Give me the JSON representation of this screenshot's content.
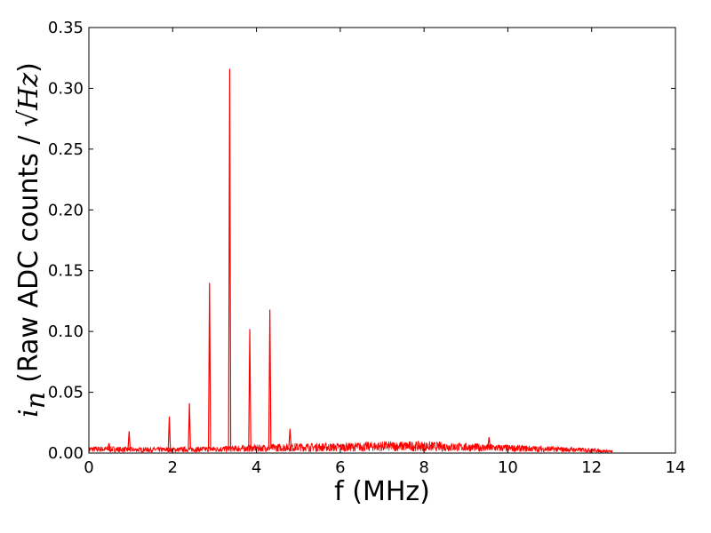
{
  "chart_data": {
    "type": "line",
    "title": "",
    "xlabel": "f (MHz)",
    "ylabel": {
      "symbol": "i",
      "subscript": "n",
      "text": "(Raw ADC counts / ",
      "sqrt_sign": "√",
      "unit": "Hz",
      "close": ")"
    },
    "xlim": [
      0,
      14
    ],
    "ylim": [
      0,
      0.35
    ],
    "xticks": [
      "0",
      "2",
      "4",
      "6",
      "8",
      "10",
      "12",
      "14"
    ],
    "yticks": [
      "0.00",
      "0.05",
      "0.10",
      "0.15",
      "0.20",
      "0.25",
      "0.30",
      "0.35"
    ],
    "grid": false,
    "series": [
      {
        "color": "#ff0000",
        "noise_floor": [
          [
            0,
            0.004
          ],
          [
            0.5,
            0.004
          ],
          [
            1.0,
            0.0035
          ],
          [
            2.0,
            0.0035
          ],
          [
            3.0,
            0.004
          ],
          [
            4.0,
            0.005
          ],
          [
            5.0,
            0.006
          ],
          [
            6.0,
            0.006
          ],
          [
            7.0,
            0.007
          ],
          [
            8.0,
            0.007
          ],
          [
            9.0,
            0.006
          ],
          [
            10.0,
            0.005
          ],
          [
            11.0,
            0.004
          ],
          [
            12.0,
            0.003
          ],
          [
            12.5,
            0.0015
          ]
        ],
        "peaks": [
          {
            "x": 0.48,
            "y": 0.008
          },
          {
            "x": 0.96,
            "y": 0.018
          },
          {
            "x": 1.92,
            "y": 0.03
          },
          {
            "x": 2.4,
            "y": 0.041
          },
          {
            "x": 2.88,
            "y": 0.14
          },
          {
            "x": 3.36,
            "y": 0.316
          },
          {
            "x": 3.84,
            "y": 0.102
          },
          {
            "x": 4.32,
            "y": 0.118
          },
          {
            "x": 4.8,
            "y": 0.02
          },
          {
            "x": 9.55,
            "y": 0.013
          }
        ]
      }
    ]
  }
}
